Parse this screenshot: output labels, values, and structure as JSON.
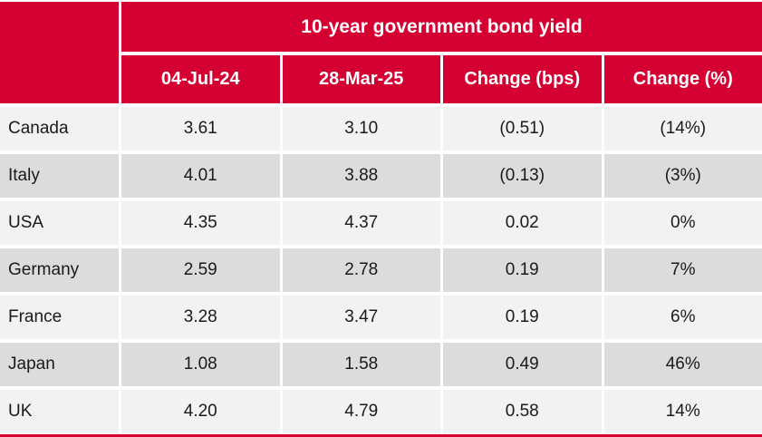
{
  "chart_data": {
    "type": "table",
    "title": "10-year government bond yield",
    "columns": [
      "04-Jul-24",
      "28-Mar-25",
      "Change (bps)",
      "Change (%)"
    ],
    "rows": [
      {
        "label": "Canada",
        "cells": [
          "3.61",
          "3.10",
          "(0.51)",
          "(14%)"
        ]
      },
      {
        "label": "Italy",
        "cells": [
          "4.01",
          "3.88",
          "(0.13)",
          "(3%)"
        ]
      },
      {
        "label": "USA",
        "cells": [
          "4.35",
          "4.37",
          "0.02",
          "0%"
        ]
      },
      {
        "label": "Germany",
        "cells": [
          "2.59",
          "2.78",
          "0.19",
          "7%"
        ]
      },
      {
        "label": "France",
        "cells": [
          "3.28",
          "3.47",
          "0.19",
          "6%"
        ]
      },
      {
        "label": "Japan",
        "cells": [
          "1.08",
          "1.58",
          "0.49",
          "46%"
        ]
      },
      {
        "label": "UK",
        "cells": [
          "4.20",
          "4.79",
          "0.58",
          "14%"
        ]
      }
    ]
  },
  "colors": {
    "accent_red": "#D50032",
    "row_light": "#F2F2F2",
    "row_dark": "#DCDCDD",
    "body_text": "#1A1A1A",
    "header_text": "#FFFFFF"
  }
}
